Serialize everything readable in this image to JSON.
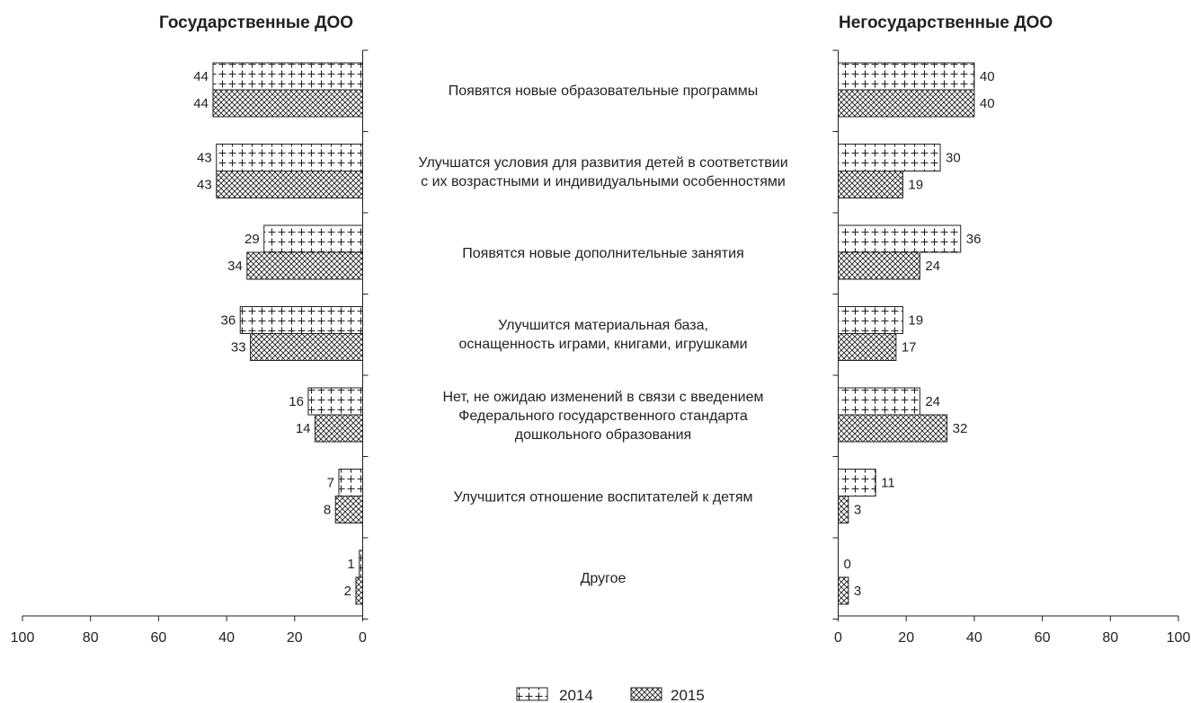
{
  "chart_data": [
    {
      "type": "bar",
      "orientation": "horizontal",
      "direction": "right-to-left",
      "title": "Государственные ДОО",
      "categories": [
        "Появятся новые образовательные программы",
        "Улучшатся условия для развития детей в соответствии с их возрастными и индивидуальными особенностями",
        "Появятся новые дополнительные занятия",
        "Улучшится материальная база, оснащенность играми, книгами, игрушками",
        "Нет, не ожидаю изменений в связи с введением Федерального государственного стандарта дошкольного образования",
        "Улучшится отношение воспитателей к детям",
        "Другое"
      ],
      "series": [
        {
          "name": "2014",
          "values": [
            44,
            43,
            29,
            36,
            16,
            7,
            1
          ]
        },
        {
          "name": "2015",
          "values": [
            44,
            43,
            34,
            33,
            14,
            8,
            2
          ]
        }
      ],
      "xlim": [
        0,
        100
      ],
      "xticks": [
        "0",
        "20",
        "40",
        "60",
        "80",
        "100"
      ]
    },
    {
      "type": "bar",
      "orientation": "horizontal",
      "direction": "left-to-right",
      "title": "Негосударственные ДОО",
      "series": [
        {
          "name": "2014",
          "values": [
            40,
            30,
            36,
            19,
            24,
            11,
            0
          ]
        },
        {
          "name": "2015",
          "values": [
            40,
            19,
            24,
            17,
            32,
            3,
            3
          ]
        }
      ],
      "xlim": [
        0,
        100
      ],
      "xticks": [
        "0",
        "20",
        "40",
        "60",
        "80",
        "100"
      ]
    }
  ],
  "category_labels": [
    [
      "Появятся новые образовательные программы"
    ],
    [
      "Улучшатся условия для развития детей в соответствии",
      "с их возрастными и индивидуальными особенностями"
    ],
    [
      "Появятся новые дополнительные занятия"
    ],
    [
      "Улучшится материальная база,",
      "оснащенность играми, книгами, игрушками"
    ],
    [
      "Нет, не ожидаю изменений в связи с введением",
      "Федерального государственного стандарта",
      "дошкольного образования"
    ],
    [
      "Улучшится отношение воспитателей к детям"
    ],
    [
      "Другое"
    ]
  ],
  "legend": {
    "items": [
      {
        "label": "2014",
        "pattern": "plus-hatch"
      },
      {
        "label": "2015",
        "pattern": "cross-hatch"
      }
    ],
    "placement": "bottom-center"
  },
  "colors": {
    "ink": "#231f20",
    "background": "#ffffff"
  }
}
